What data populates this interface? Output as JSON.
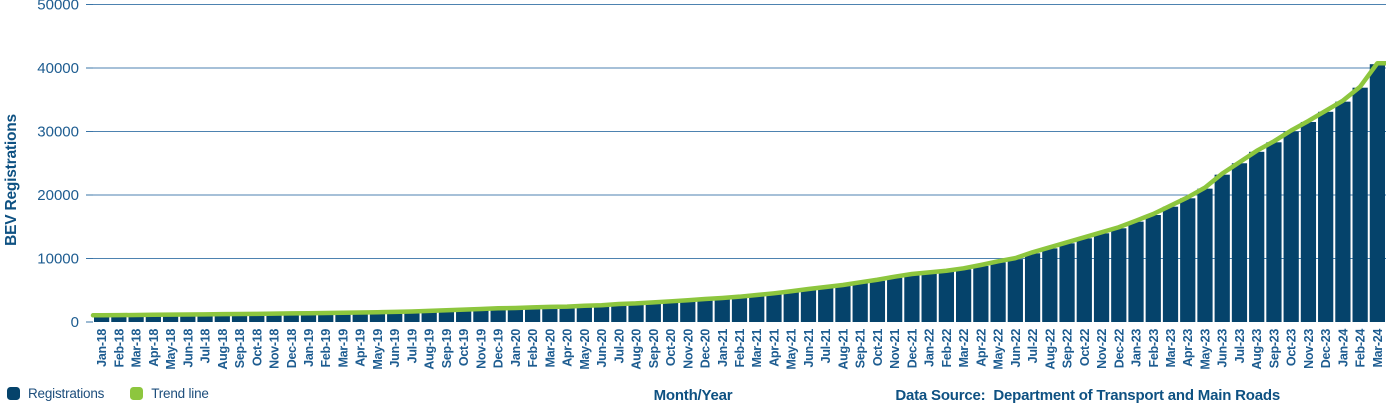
{
  "chart_data": {
    "type": "bar",
    "title": "",
    "xlabel": "Month/Year",
    "ylabel": "BEV Registrations",
    "ylim": [
      0,
      50000
    ],
    "yticks": [
      0,
      10000,
      20000,
      30000,
      40000,
      50000
    ],
    "grid": true,
    "legend_position": "bottom-left",
    "categories": [
      "Jan-18",
      "Feb-18",
      "Mar-18",
      "Apr-18",
      "May-18",
      "Jun-18",
      "Jul-18",
      "Aug-18",
      "Sep-18",
      "Oct-18",
      "Nov-18",
      "Dec-18",
      "Jan-19",
      "Feb-19",
      "Mar-19",
      "Apr-19",
      "May-19",
      "Jun-19",
      "Jul-19",
      "Aug-19",
      "Sep-19",
      "Oct-19",
      "Nov-19",
      "Dec-19",
      "Jan-20",
      "Feb-20",
      "Mar-20",
      "Apr-20",
      "May-20",
      "Jun-20",
      "Jul-20",
      "Aug-20",
      "Sep-20",
      "Oct-20",
      "Nov-20",
      "Dec-20",
      "Jan-21",
      "Feb-21",
      "Mar-21",
      "Apr-21",
      "May-21",
      "Jun-21",
      "Jul-21",
      "Aug-21",
      "Sep-21",
      "Oct-21",
      "Nov-21",
      "Dec-21",
      "Jan-22",
      "Feb-22",
      "Mar-22",
      "Apr-22",
      "May-22",
      "Jun-22",
      "Jul-22",
      "Aug-22",
      "Sep-22",
      "Oct-22",
      "Nov-22",
      "Dec-22",
      "Jan-23",
      "Feb-23",
      "Mar-23",
      "Apr-23",
      "May-23",
      "Jun-23",
      "Jul-23",
      "Aug-23",
      "Sep-23",
      "Oct-23",
      "Nov-23",
      "Dec-23",
      "Jan-24",
      "Feb-24",
      "Mar-24"
    ],
    "values": [
      900,
      920,
      950,
      980,
      1000,
      1020,
      1050,
      1080,
      1100,
      1130,
      1160,
      1200,
      1230,
      1260,
      1300,
      1340,
      1380,
      1430,
      1500,
      1600,
      1700,
      1800,
      1900,
      2000,
      2050,
      2150,
      2220,
      2260,
      2400,
      2480,
      2680,
      2780,
      2940,
      3100,
      3260,
      3470,
      3620,
      3830,
      4100,
      4360,
      4680,
      5040,
      5360,
      5670,
      6090,
      6500,
      6980,
      7400,
      7660,
      7920,
      8300,
      8820,
      9400,
      9900,
      10820,
      11600,
      12390,
      13180,
      13970,
      14760,
      15800,
      16850,
      18160,
      19480,
      21000,
      23200,
      25000,
      26800,
      28300,
      30000,
      31500,
      33100,
      34700,
      36900,
      40600
    ],
    "series": [
      {
        "name": "Registrations",
        "kind": "bar",
        "color": "#05436b"
      },
      {
        "name": "Trend line",
        "kind": "line",
        "color": "#8dc63e"
      }
    ]
  },
  "footer": {
    "data_source": "Data Source:  Department of Transport and Main Roads"
  },
  "colors": {
    "axis_text": "#1d5c90",
    "title_text": "#0e5182",
    "grid": "#2f6da3",
    "background": "#ffffff"
  }
}
